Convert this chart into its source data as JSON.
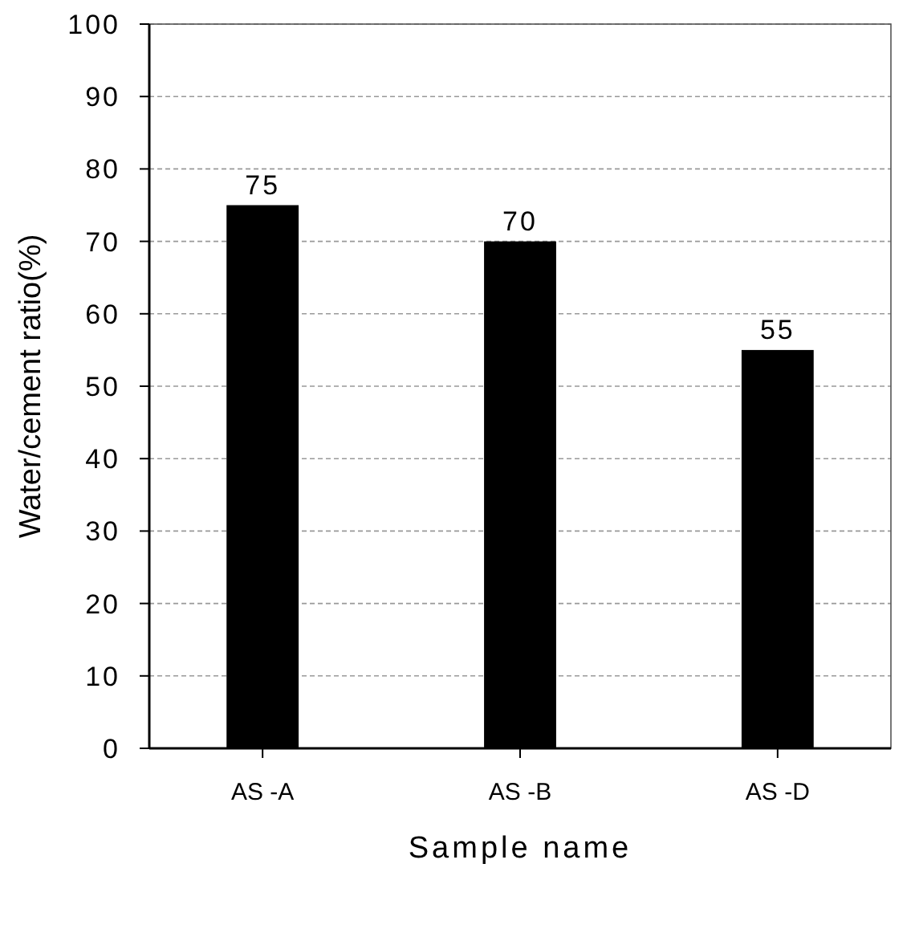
{
  "chart_data": {
    "type": "bar",
    "xlabel": "Sample name",
    "ylabel": "Water/cement ratio(%)",
    "categories": [
      "AS -A",
      "AS -B",
      "AS -D"
    ],
    "values": [
      75,
      70,
      55
    ],
    "color": "#000000",
    "ylim": [
      0,
      100
    ],
    "yticks": [
      0,
      10,
      20,
      30,
      40,
      50,
      60,
      70,
      80,
      90,
      100
    ],
    "grid": "y",
    "data_labels": true
  }
}
